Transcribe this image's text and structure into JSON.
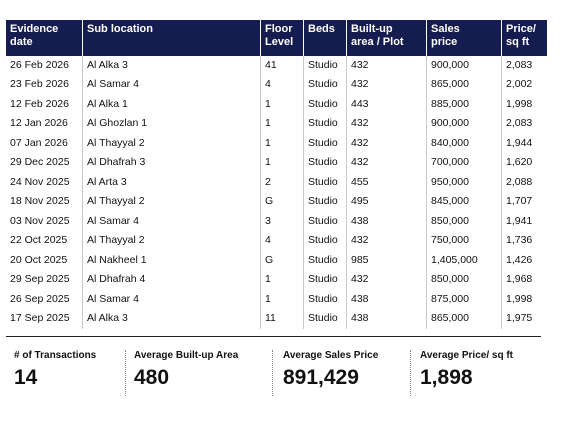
{
  "table": {
    "headers": [
      [
        "Evidence",
        "date"
      ],
      [
        "Sub location"
      ],
      [
        "Floor",
        "Level"
      ],
      [
        "Beds"
      ],
      [
        "Built-up",
        "area / Plot"
      ],
      [
        "Sales",
        "price"
      ],
      [
        "Price/",
        "sq ft"
      ]
    ],
    "rows": [
      [
        "26 Feb 2026",
        "Al Alka 3",
        "41",
        "Studio",
        "432",
        "900,000",
        "2,083"
      ],
      [
        "23 Feb 2026",
        "Al Samar 4",
        "4",
        "Studio",
        "432",
        "865,000",
        "2,002"
      ],
      [
        "12 Feb 2026",
        "Al Alka 1",
        "1",
        "Studio",
        "443",
        "885,000",
        "1,998"
      ],
      [
        "12 Jan 2026",
        "Al Ghozlan 1",
        "1",
        "Studio",
        "432",
        "900,000",
        "2,083"
      ],
      [
        "07 Jan 2026",
        "Al Thayyal 2",
        "1",
        "Studio",
        "432",
        "840,000",
        "1,944"
      ],
      [
        "29 Dec 2025",
        "Al Dhafrah 3",
        "1",
        "Studio",
        "432",
        "700,000",
        "1,620"
      ],
      [
        "24 Nov 2025",
        "Al Arta 3",
        "2",
        "Studio",
        "455",
        "950,000",
        "2,088"
      ],
      [
        "18 Nov 2025",
        "Al Thayyal 2",
        "G",
        "Studio",
        "495",
        "845,000",
        "1,707"
      ],
      [
        "03 Nov 2025",
        "Al Samar 4",
        "3",
        "Studio",
        "438",
        "850,000",
        "1,941"
      ],
      [
        "22 Oct 2025",
        "Al Thayyal 2",
        "4",
        "Studio",
        "432",
        "750,000",
        "1,736"
      ],
      [
        "20 Oct 2025",
        "Al Nakheel 1",
        "G",
        "Studio",
        "985",
        "1,405,000",
        "1,426"
      ],
      [
        "29 Sep 2025",
        "Al Dhafrah 4",
        "1",
        "Studio",
        "432",
        "850,000",
        "1,968"
      ],
      [
        "26 Sep 2025",
        "Al Samar 4",
        "1",
        "Studio",
        "438",
        "875,000",
        "1,998"
      ],
      [
        "17 Sep 2025",
        "Al Alka 3",
        "11",
        "Studio",
        "438",
        "865,000",
        "1,975"
      ]
    ]
  },
  "summary": [
    {
      "label": "# of Transactions",
      "value": "14"
    },
    {
      "label": "Average Built-up Area",
      "value": "480"
    },
    {
      "label": "Average Sales Price",
      "value": "891,429"
    },
    {
      "label": "Average Price/ sq ft",
      "value": "1,898"
    }
  ]
}
